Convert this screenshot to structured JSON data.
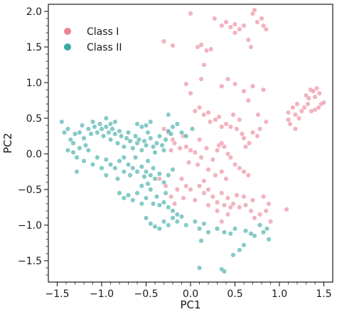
{
  "chart_data": {
    "type": "scatter",
    "title": "",
    "xlabel": "PC1",
    "ylabel": "PC2",
    "xlim": [
      -1.6,
      1.6
    ],
    "ylim": [
      -1.8,
      2.1
    ],
    "xticks": [
      -1.5,
      -1.0,
      -0.5,
      0.0,
      0.5,
      1.0,
      1.5
    ],
    "xtick_labels": [
      "−1.5",
      "−1.0",
      "−0.5",
      "0.0",
      "0.5",
      "1.0",
      "1.5"
    ],
    "yticks": [
      -1.5,
      -1.0,
      -0.5,
      0.0,
      0.5,
      1.0,
      1.5,
      2.0
    ],
    "ytick_labels": [
      "−1.5",
      "−1.0",
      "−0.5",
      "0.0",
      "0.5",
      "1.0",
      "1.5",
      "2.0"
    ],
    "grid": false,
    "legend_position": "top-left",
    "series": [
      {
        "name": "Class I",
        "color": "#ea8496",
        "points": [
          [
            0.0,
            1.97
          ],
          [
            0.27,
            1.9
          ],
          [
            0.35,
            1.8
          ],
          [
            0.4,
            1.85
          ],
          [
            0.45,
            1.78
          ],
          [
            0.5,
            1.82
          ],
          [
            0.55,
            1.75
          ],
          [
            0.6,
            1.8
          ],
          [
            0.7,
            1.97
          ],
          [
            0.72,
            2.02
          ],
          [
            0.75,
            1.85
          ],
          [
            0.8,
            1.9
          ],
          [
            0.82,
            1.8
          ],
          [
            0.85,
            1.75
          ],
          [
            0.5,
            1.7
          ],
          [
            0.65,
            1.6
          ],
          [
            0.68,
            1.5
          ],
          [
            -0.3,
            1.58
          ],
          [
            -0.2,
            1.52
          ],
          [
            0.08,
            1.5
          ],
          [
            0.12,
            1.53
          ],
          [
            0.18,
            1.45
          ],
          [
            0.23,
            1.47
          ],
          [
            0.15,
            1.25
          ],
          [
            0.12,
            1.05
          ],
          [
            0.35,
            0.95
          ],
          [
            0.42,
            1.05
          ],
          [
            0.5,
            0.98
          ],
          [
            0.6,
            0.88
          ],
          [
            0.7,
            0.95
          ],
          [
            0.82,
            0.9
          ],
          [
            0.65,
            0.75
          ],
          [
            0.76,
            0.55
          ],
          [
            0.85,
            0.45
          ],
          [
            -0.05,
            0.98
          ],
          [
            0.0,
            0.85
          ],
          [
            1.1,
            0.58
          ],
          [
            1.15,
            0.65
          ],
          [
            1.18,
            0.55
          ],
          [
            1.2,
            0.7
          ],
          [
            1.22,
            0.5
          ],
          [
            1.25,
            0.6
          ],
          [
            1.1,
            0.48
          ],
          [
            1.12,
            0.42
          ],
          [
            1.18,
            0.35
          ],
          [
            1.3,
            0.82
          ],
          [
            1.33,
            0.78
          ],
          [
            1.35,
            0.9
          ],
          [
            1.38,
            0.88
          ],
          [
            1.4,
            0.8
          ],
          [
            1.42,
            0.92
          ],
          [
            1.45,
            0.85
          ],
          [
            1.47,
            0.7
          ],
          [
            1.5,
            0.72
          ],
          [
            1.4,
            0.62
          ],
          [
            1.36,
            0.6
          ],
          [
            1.32,
            0.7
          ],
          [
            1.28,
            0.65
          ],
          [
            1.44,
            0.65
          ],
          [
            0.05,
            0.6
          ],
          [
            0.1,
            0.65
          ],
          [
            0.15,
            0.55
          ],
          [
            0.2,
            0.58
          ],
          [
            0.22,
            0.45
          ],
          [
            0.28,
            0.48
          ],
          [
            0.32,
            0.52
          ],
          [
            0.35,
            0.38
          ],
          [
            0.4,
            0.42
          ],
          [
            0.45,
            0.38
          ],
          [
            0.52,
            0.35
          ],
          [
            0.58,
            0.28
          ],
          [
            0.6,
            0.22
          ],
          [
            0.66,
            0.15
          ],
          [
            0.62,
            0.1
          ],
          [
            0.7,
            0.3
          ],
          [
            0.75,
            0.25
          ],
          [
            0.78,
            0.35
          ],
          [
            0.55,
            0.48
          ],
          [
            0.48,
            0.55
          ],
          [
            -0.3,
            0.35
          ],
          [
            -0.25,
            0.3
          ],
          [
            -0.2,
            0.2
          ],
          [
            -0.22,
            0.05
          ],
          [
            -0.18,
            0.15
          ],
          [
            -0.12,
            0.08
          ],
          [
            -0.08,
            0.25
          ],
          [
            -0.05,
            0.1
          ],
          [
            0.0,
            0.05
          ],
          [
            0.05,
            0.02
          ],
          [
            0.1,
            0.2
          ],
          [
            0.12,
            -0.05
          ],
          [
            0.18,
            0.08
          ],
          [
            0.25,
            -0.08
          ],
          [
            0.3,
            0.05
          ],
          [
            0.32,
            0.12
          ],
          [
            0.35,
            0.15
          ],
          [
            0.38,
            0.1
          ],
          [
            0.42,
            0.0
          ],
          [
            0.45,
            -0.05
          ],
          [
            0.5,
            -0.15
          ],
          [
            0.55,
            -0.2
          ],
          [
            0.6,
            -0.25
          ],
          [
            0.65,
            -0.3
          ],
          [
            -0.02,
            -0.12
          ],
          [
            0.08,
            -0.15
          ],
          [
            0.2,
            -0.22
          ],
          [
            0.28,
            -0.3
          ],
          [
            0.35,
            -0.25
          ],
          [
            0.4,
            -0.35
          ],
          [
            0.1,
            -0.45
          ],
          [
            0.15,
            -0.55
          ],
          [
            0.2,
            -0.5
          ],
          [
            0.25,
            -0.6
          ],
          [
            0.3,
            -0.68
          ],
          [
            0.35,
            -0.55
          ],
          [
            0.42,
            -0.62
          ],
          [
            0.48,
            -0.7
          ],
          [
            0.55,
            -0.75
          ],
          [
            0.62,
            -0.72
          ],
          [
            0.68,
            -0.8
          ],
          [
            0.72,
            -0.9
          ],
          [
            0.78,
            -0.85
          ],
          [
            0.85,
            -0.8
          ],
          [
            0.9,
            -0.95
          ],
          [
            0.7,
            -0.65
          ],
          [
            0.6,
            -0.6
          ],
          [
            0.52,
            -0.58
          ],
          [
            0.82,
            -0.6
          ],
          [
            0.88,
            -0.7
          ],
          [
            0.3,
            -0.8
          ],
          [
            0.35,
            -0.95
          ],
          [
            0.42,
            -0.85
          ],
          [
            0.45,
            -0.75
          ],
          [
            0.38,
            -0.72
          ],
          [
            1.08,
            -0.78
          ],
          [
            -0.1,
            -0.35
          ],
          [
            -0.05,
            -0.45
          ],
          [
            0.0,
            -0.5
          ],
          [
            -0.15,
            -0.5
          ],
          [
            -0.22,
            -0.6
          ],
          [
            -0.28,
            -0.45
          ],
          [
            -0.35,
            -0.35
          ],
          [
            -0.18,
            -0.7
          ],
          [
            0.15,
            -0.38
          ],
          [
            0.05,
            -0.65
          ],
          [
            -0.08,
            -0.62
          ],
          [
            0.2,
            -0.72
          ]
        ]
      },
      {
        "name": "Class II",
        "color": "#3aa9a4",
        "points": [
          [
            -1.45,
            0.45
          ],
          [
            -1.42,
            0.3
          ],
          [
            -1.38,
            0.35
          ],
          [
            -1.35,
            0.2
          ],
          [
            -1.3,
            0.28
          ],
          [
            -1.32,
            0.15
          ],
          [
            -1.25,
            0.3
          ],
          [
            -1.22,
            0.4
          ],
          [
            -1.2,
            0.22
          ],
          [
            -1.18,
            0.12
          ],
          [
            -1.15,
            0.35
          ],
          [
            -1.12,
            0.28
          ],
          [
            -1.1,
            0.45
          ],
          [
            -1.08,
            0.38
          ],
          [
            -1.05,
            0.3
          ],
          [
            -1.02,
            0.42
          ],
          [
            -1.0,
            0.35
          ],
          [
            -0.98,
            0.25
          ],
          [
            -0.95,
            0.38
          ],
          [
            -0.92,
            0.3
          ],
          [
            -0.9,
            0.2
          ],
          [
            -0.88,
            0.35
          ],
          [
            -0.85,
            0.28
          ],
          [
            -0.82,
            0.15
          ],
          [
            -0.8,
            0.32
          ],
          [
            -0.78,
            0.25
          ],
          [
            -0.75,
            0.1
          ],
          [
            -0.72,
            0.22
          ],
          [
            -0.7,
            0.3
          ],
          [
            -0.68,
            0.18
          ],
          [
            -0.65,
            0.08
          ],
          [
            -0.62,
            0.25
          ],
          [
            -0.6,
            0.15
          ],
          [
            -0.58,
            0.2
          ],
          [
            -0.55,
            0.05
          ],
          [
            -0.52,
            0.18
          ],
          [
            -0.5,
            0.12
          ],
          [
            -0.48,
            0.3
          ],
          [
            -0.45,
            0.22
          ],
          [
            -0.42,
            0.1
          ],
          [
            -0.4,
            0.02
          ],
          [
            -0.38,
            0.15
          ],
          [
            -0.35,
            0.25
          ],
          [
            -0.32,
            0.12
          ],
          [
            -0.3,
            0.05
          ],
          [
            -0.28,
            0.2
          ],
          [
            -0.25,
            0.32
          ],
          [
            -0.22,
            0.28
          ],
          [
            -0.2,
            0.38
          ],
          [
            -0.15,
            0.42
          ],
          [
            -0.1,
            0.3
          ],
          [
            -0.05,
            0.25
          ],
          [
            0.02,
            0.35
          ],
          [
            -0.95,
            0.5
          ],
          [
            -0.9,
            0.42
          ],
          [
            -0.85,
            0.45
          ],
          [
            -0.6,
            0.42
          ],
          [
            -0.55,
            0.38
          ],
          [
            -0.5,
            0.4
          ],
          [
            -0.45,
            0.45
          ],
          [
            -0.25,
            0.55
          ],
          [
            -1.38,
            0.05
          ],
          [
            -1.32,
            0.02
          ],
          [
            -1.28,
            -0.05
          ],
          [
            -1.25,
            0.08
          ],
          [
            -1.2,
            -0.1
          ],
          [
            -1.15,
            0.05
          ],
          [
            -1.1,
            -0.15
          ],
          [
            -1.05,
            -0.05
          ],
          [
            -1.0,
            -0.2
          ],
          [
            -0.95,
            -0.08
          ],
          [
            -0.9,
            -0.15
          ],
          [
            -0.85,
            -0.2
          ],
          [
            -0.8,
            -0.1
          ],
          [
            -0.75,
            -0.25
          ],
          [
            -0.7,
            -0.15
          ],
          [
            -0.68,
            -0.3
          ],
          [
            -0.65,
            -0.2
          ],
          [
            -0.62,
            -0.05
          ],
          [
            -0.6,
            -0.25
          ],
          [
            -0.55,
            -0.18
          ],
          [
            -0.52,
            -0.32
          ],
          [
            -0.5,
            -0.25
          ],
          [
            -0.48,
            -0.1
          ],
          [
            -0.45,
            -0.3
          ],
          [
            -0.42,
            -0.2
          ],
          [
            -0.4,
            -0.35
          ],
          [
            -0.35,
            -0.28
          ],
          [
            -0.3,
            -0.4
          ],
          [
            -0.25,
            -0.3
          ],
          [
            -0.2,
            -0.22
          ],
          [
            -1.28,
            -0.25
          ],
          [
            -0.95,
            -0.3
          ],
          [
            -0.82,
            -0.35
          ],
          [
            -0.75,
            -0.05
          ],
          [
            -0.8,
            -0.55
          ],
          [
            -0.75,
            -0.62
          ],
          [
            -0.7,
            -0.58
          ],
          [
            -0.65,
            -0.65
          ],
          [
            -0.6,
            -0.55
          ],
          [
            -0.55,
            -0.7
          ],
          [
            -0.5,
            -0.62
          ],
          [
            -0.45,
            -0.5
          ],
          [
            -0.42,
            -0.7
          ],
          [
            -0.38,
            -0.6
          ],
          [
            -0.35,
            -0.72
          ],
          [
            -0.3,
            -0.68
          ],
          [
            -0.28,
            -0.55
          ],
          [
            -0.25,
            -0.75
          ],
          [
            -0.2,
            -0.8
          ],
          [
            -0.15,
            -0.85
          ],
          [
            -0.55,
            -0.45
          ],
          [
            -0.48,
            -0.42
          ],
          [
            -0.5,
            -0.9
          ],
          [
            -0.45,
            -0.98
          ],
          [
            -0.4,
            -1.02
          ],
          [
            -0.35,
            -1.05
          ],
          [
            -0.3,
            -0.95
          ],
          [
            -0.25,
            -1.0
          ],
          [
            -0.2,
            -0.9
          ],
          [
            -0.15,
            -0.95
          ],
          [
            -0.1,
            -0.88
          ],
          [
            -0.05,
            -1.0
          ],
          [
            0.05,
            -0.95
          ],
          [
            0.1,
            -1.05
          ],
          [
            0.15,
            -0.98
          ],
          [
            0.2,
            -1.1
          ],
          [
            0.3,
            -1.05
          ],
          [
            0.38,
            -1.1
          ],
          [
            0.45,
            -1.12
          ],
          [
            0.5,
            -1.05
          ],
          [
            0.62,
            -1.08
          ],
          [
            0.68,
            -1.12
          ],
          [
            0.72,
            -1.15
          ],
          [
            0.78,
            -1.0
          ],
          [
            0.82,
            -1.1
          ],
          [
            0.86,
            -1.05
          ],
          [
            0.88,
            -1.2
          ],
          [
            0.6,
            -1.28
          ],
          [
            0.55,
            -1.35
          ],
          [
            0.12,
            -1.22
          ],
          [
            0.1,
            -1.6
          ],
          [
            0.35,
            -1.62
          ],
          [
            0.38,
            -1.65
          ],
          [
            0.48,
            -1.42
          ]
        ]
      }
    ]
  }
}
